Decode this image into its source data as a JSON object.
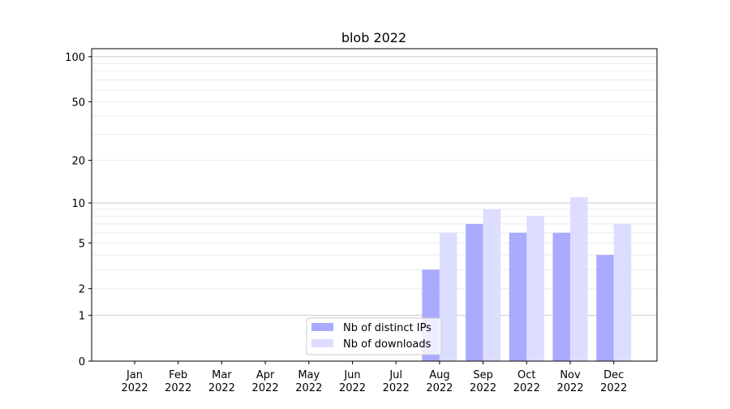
{
  "chart_data": {
    "type": "bar",
    "title": "blob 2022",
    "xlabel": "",
    "ylabel": "",
    "y_scale": "log(1+y)",
    "ylim": [
      0,
      113
    ],
    "yticks": [
      0,
      1,
      2,
      5,
      10,
      20,
      50,
      100
    ],
    "ytick_labels": [
      "0",
      "1",
      "2",
      "5",
      "10",
      "20",
      "50",
      "100"
    ],
    "grid": "horizontal, major and minor",
    "legend_placement": "lower center",
    "categories": [
      "Jan\n2022",
      "Feb\n2022",
      "Mar\n2022",
      "Apr\n2022",
      "May\n2022",
      "Jun\n2022",
      "Jul\n2022",
      "Aug\n2022",
      "Sep\n2022",
      "Oct\n2022",
      "Nov\n2022",
      "Dec\n2022"
    ],
    "series": [
      {
        "name": "Nb of distinct IPs",
        "color": "#aaaaff",
        "values": [
          0,
          0,
          0,
          0,
          0,
          0,
          0,
          3,
          7,
          6,
          6,
          4
        ]
      },
      {
        "name": "Nb of downloads",
        "color": "#ddddff",
        "values": [
          0,
          0,
          0,
          0,
          0,
          0,
          0,
          6,
          9,
          8,
          11,
          7
        ]
      }
    ]
  }
}
